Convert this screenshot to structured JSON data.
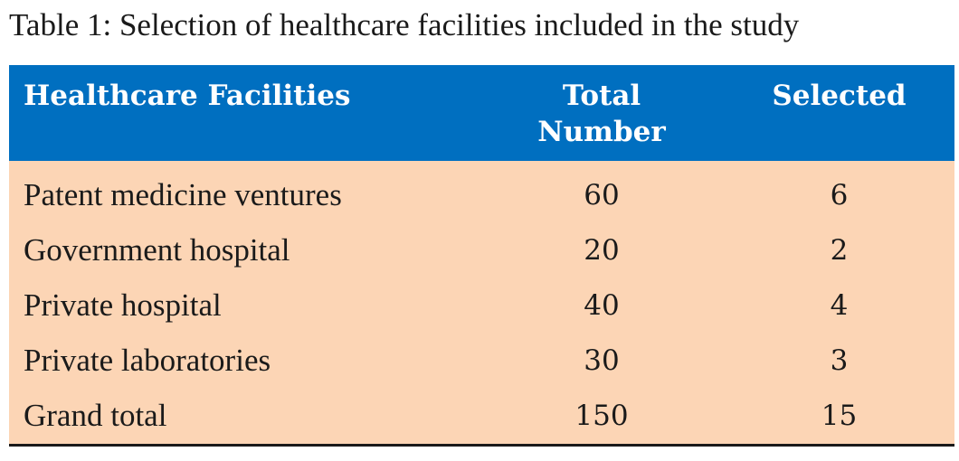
{
  "caption": "Table 1: Selection of healthcare facilities included in the study",
  "table": {
    "headers": {
      "facilities": "Healthcare Facilities",
      "total_line1": "Total",
      "total_line2": "Number",
      "selected": "Selected"
    },
    "rows": [
      {
        "facility": "Patent medicine ventures",
        "total": "60",
        "selected": "6"
      },
      {
        "facility": "Government hospital",
        "total": "20",
        "selected": "2"
      },
      {
        "facility": "Private hospital",
        "total": "40",
        "selected": "4"
      },
      {
        "facility": "Private laboratories",
        "total": "30",
        "selected": "3"
      },
      {
        "facility": "Grand total",
        "total": "150",
        "selected": "15"
      }
    ]
  },
  "colors": {
    "header_bg": "#006fc0",
    "body_bg": "#fcd5b5"
  }
}
